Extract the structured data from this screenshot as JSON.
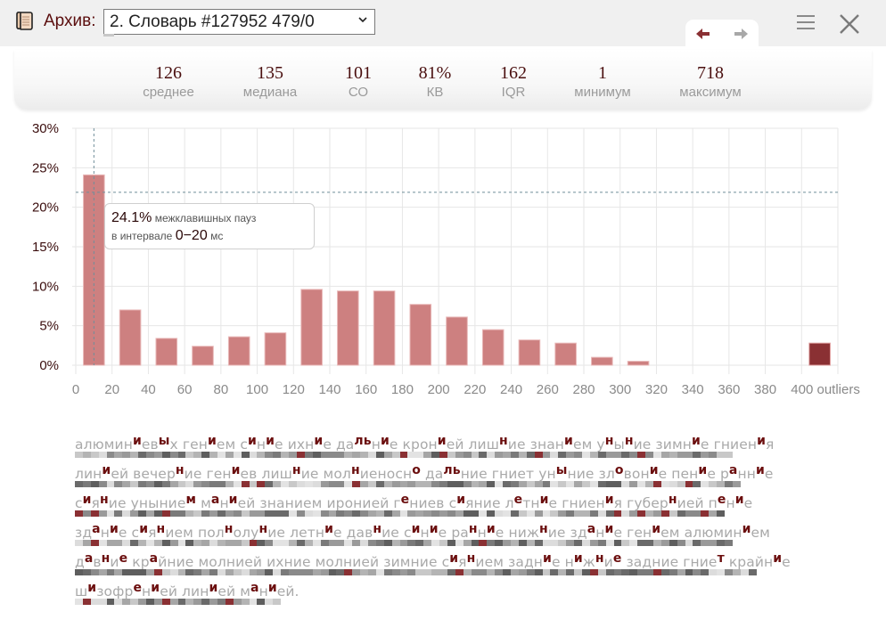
{
  "header": {
    "archive_label": "Архив:",
    "archive_selected": "2. Словарь #127952 479/0",
    "icons": {
      "archive": "scroll-icon",
      "back": "arrow-left-icon",
      "forward": "arrow-right-icon",
      "menu": "hamburger-menu-icon",
      "close": "close-icon"
    }
  },
  "stats": [
    {
      "value": "126",
      "label": "среднее"
    },
    {
      "value": "135",
      "label": "медиана"
    },
    {
      "value": "101",
      "label": "СО"
    },
    {
      "value": "81%",
      "label": "КВ"
    },
    {
      "value": "162",
      "label": "IQR"
    },
    {
      "value": "1",
      "label": "минимум"
    },
    {
      "value": "718",
      "label": "максимум"
    }
  ],
  "tooltip": {
    "value": "24.1%",
    "text1": "межклавишных пауз",
    "text2": "в интервале",
    "range": "0−20",
    "unit": "мс"
  },
  "chart_data": {
    "type": "bar",
    "title": "",
    "xlabel": "",
    "ylabel": "",
    "x_ticks": [
      "0",
      "20",
      "40",
      "60",
      "80",
      "100",
      "120",
      "140",
      "160",
      "180",
      "200",
      "220",
      "240",
      "260",
      "280",
      "300",
      "320",
      "340",
      "360",
      "380",
      "400 outliers"
    ],
    "y_ticks": [
      "0%",
      "5%",
      "10%",
      "15%",
      "20%",
      "25%",
      "30%"
    ],
    "ylim": [
      0,
      30
    ],
    "xlim": [
      0,
      420
    ],
    "grid": true,
    "bin_width": 20,
    "bins": [
      {
        "from": 0,
        "to": 20,
        "value": 24.1
      },
      {
        "from": 20,
        "to": 40,
        "value": 7.0
      },
      {
        "from": 40,
        "to": 60,
        "value": 3.4
      },
      {
        "from": 60,
        "to": 80,
        "value": 2.4
      },
      {
        "from": 80,
        "to": 100,
        "value": 3.6
      },
      {
        "from": 100,
        "to": 120,
        "value": 4.1
      },
      {
        "from": 120,
        "to": 140,
        "value": 9.6
      },
      {
        "from": 140,
        "to": 160,
        "value": 9.4
      },
      {
        "from": 160,
        "to": 180,
        "value": 9.4
      },
      {
        "from": 180,
        "to": 200,
        "value": 7.7
      },
      {
        "from": 200,
        "to": 220,
        "value": 6.1
      },
      {
        "from": 220,
        "to": 240,
        "value": 4.5
      },
      {
        "from": 240,
        "to": 260,
        "value": 3.2
      },
      {
        "from": 260,
        "to": 280,
        "value": 2.8
      },
      {
        "from": 280,
        "to": 300,
        "value": 1.0
      },
      {
        "from": 300,
        "to": 320,
        "value": 0.5
      }
    ],
    "outliers": {
      "label": "outliers",
      "value": 2.8
    },
    "crosshair": {
      "x": 10,
      "y": 21.9
    },
    "colors": {
      "bar": "#cd8080",
      "outlier_bar": "#8a3033",
      "crosshair": "#6f8e99",
      "grid": "#e6e6e6"
    }
  },
  "text_lines": [
    "алюмин[и]ев[ы]х ген[и]ем с[и]н[и]е ихн[и]е да[ль]н[и]е крон[и]ей лиш[н]ие знан[и]ем у[н]ы[н]ие зимн[и]е гниен[и]я",
    "лин[и]ей вечер[н]ие ген[и]ев лиш[н]ие мол[н]иеносн[о] да[ль]ние гниет ун[ы]ние зл[о]вон[и]е пен[и]е р[а]нн[и]е",
    "с[и]я[н]ие уныние[м] м[а]н[и]ей знанием иронией г[е]ниев с[и]яние л[е]тн[и]е гниен[и]я губер[н]ией п[е]н[и]е",
    "зд[а]н[и]е с[и]я[н]ием пол[н]олу[н]ие летн[и]е дав[н]ие с[и]н[и]е ра[н]н[и]е ниж[н]ие зд[а]н[и]е ген[и]ем алюмин[и]ем",
    "д[а]в[н]и[е] кр[а]йние молнией ихние молнией зимние с[и]я[н]ием задн[и]е н[и]ж[н]и[е] задние гние[т] крайн[и]е",
    "ш[и]зофр[е]н[и]ей лин[и]ей м[а]н[и]ей."
  ],
  "colors": {
    "accent": "#8a3033",
    "dark_text": "#4a0f0f",
    "muted_text": "#a9a9a9"
  }
}
